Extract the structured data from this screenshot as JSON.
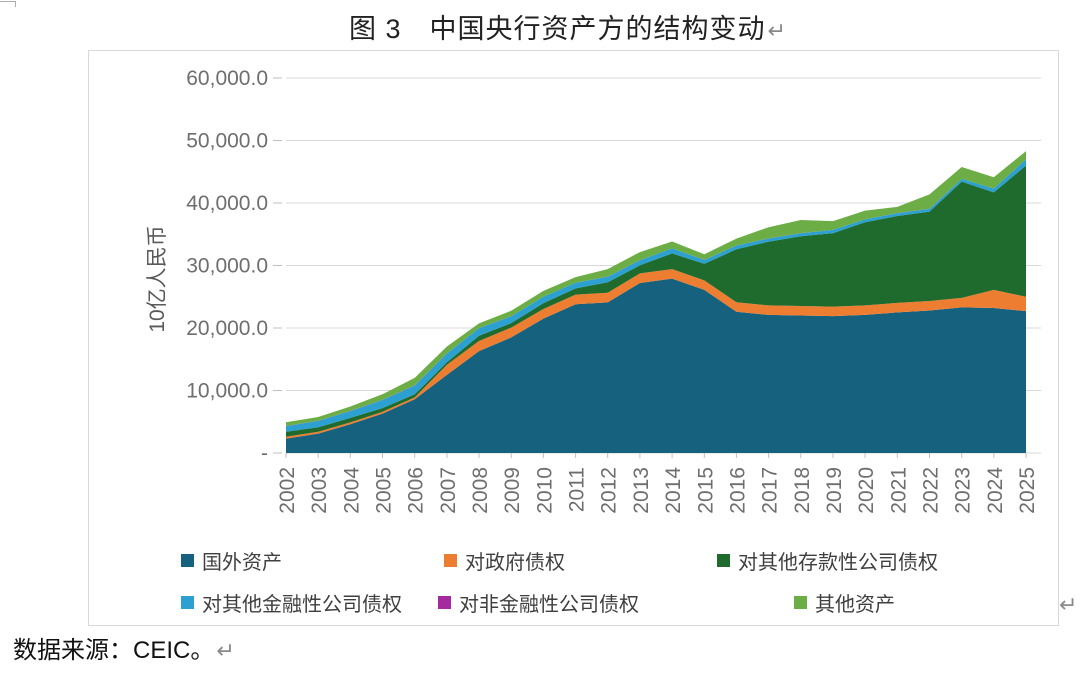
{
  "page": {
    "title": "图 3　中国央行资产方的结构变动",
    "paragraph_mark": "↵",
    "footer": "数据来源：CEIC。"
  },
  "chart_data": {
    "type": "area",
    "stacked": true,
    "title": "图 3　中国央行资产方的结构变动",
    "source": "CEIC",
    "ylabel": "10亿人民币",
    "ylim": [
      0,
      60000
    ],
    "grid": true,
    "legend_position": "bottom",
    "y_ticks": [
      0,
      10000,
      20000,
      30000,
      40000,
      50000,
      60000
    ],
    "y_tick_labels": [
      "-",
      "10,000.0",
      "20,000.0",
      "30,000.0",
      "40,000.0",
      "50,000.0",
      "60,000.0"
    ],
    "x": [
      2002,
      2003,
      2004,
      2005,
      2006,
      2007,
      2008,
      2009,
      2010,
      2011,
      2012,
      2013,
      2014,
      2015,
      2016,
      2017,
      2018,
      2019,
      2020,
      2021,
      2022,
      2023,
      2024,
      2025
    ],
    "series": [
      {
        "name": "国外资产",
        "color": "#16617E",
        "values": [
          2300,
          3100,
          4600,
          6300,
          8600,
          12500,
          16300,
          18500,
          21500,
          23800,
          24100,
          27200,
          27900,
          26100,
          22600,
          22100,
          22000,
          21900,
          22100,
          22500,
          22800,
          23300,
          23200,
          22700
        ]
      },
      {
        "name": "对政府债权",
        "color": "#ED7D31",
        "values": [
          290,
          290,
          290,
          290,
          290,
          1630,
          1620,
          1560,
          1540,
          1540,
          1540,
          1530,
          1530,
          1520,
          1520,
          1520,
          1520,
          1520,
          1520,
          1520,
          1520,
          1520,
          2900,
          2300
        ]
      },
      {
        "name": "对其他存款性公司债权",
        "color": "#1F6B2E",
        "values": [
          800,
          740,
          720,
          600,
          500,
          390,
          840,
          720,
          950,
          1000,
          1670,
          1310,
          2500,
          2660,
          8470,
          10200,
          11150,
          11770,
          13300,
          13900,
          14300,
          18600,
          15600,
          21000
        ]
      },
      {
        "name": "对其他金融性公司债权",
        "color": "#2BA0D1",
        "values": [
          900,
          1000,
          1100,
          1300,
          1400,
          1400,
          1200,
          1100,
          1000,
          900,
          900,
          800,
          800,
          600,
          600,
          500,
          500,
          500,
          450,
          450,
          440,
          430,
          600,
          1000
        ]
      },
      {
        "name": "对非金融性公司债权",
        "color": "#A52AA0",
        "values": [
          30,
          30,
          25,
          25,
          20,
          20,
          20,
          15,
          15,
          10,
          10,
          10,
          10,
          10,
          10,
          10,
          10,
          10,
          10,
          10,
          10,
          10,
          10,
          10
        ]
      },
      {
        "name": "其他资产",
        "color": "#6CAD45",
        "values": [
          600,
          600,
          700,
          900,
          1200,
          1100,
          760,
          850,
          930,
          900,
          1200,
          1300,
          1100,
          900,
          1100,
          1800,
          2100,
          1400,
          1400,
          1000,
          2300,
          1900,
          1800,
          1300
        ]
      }
    ]
  }
}
